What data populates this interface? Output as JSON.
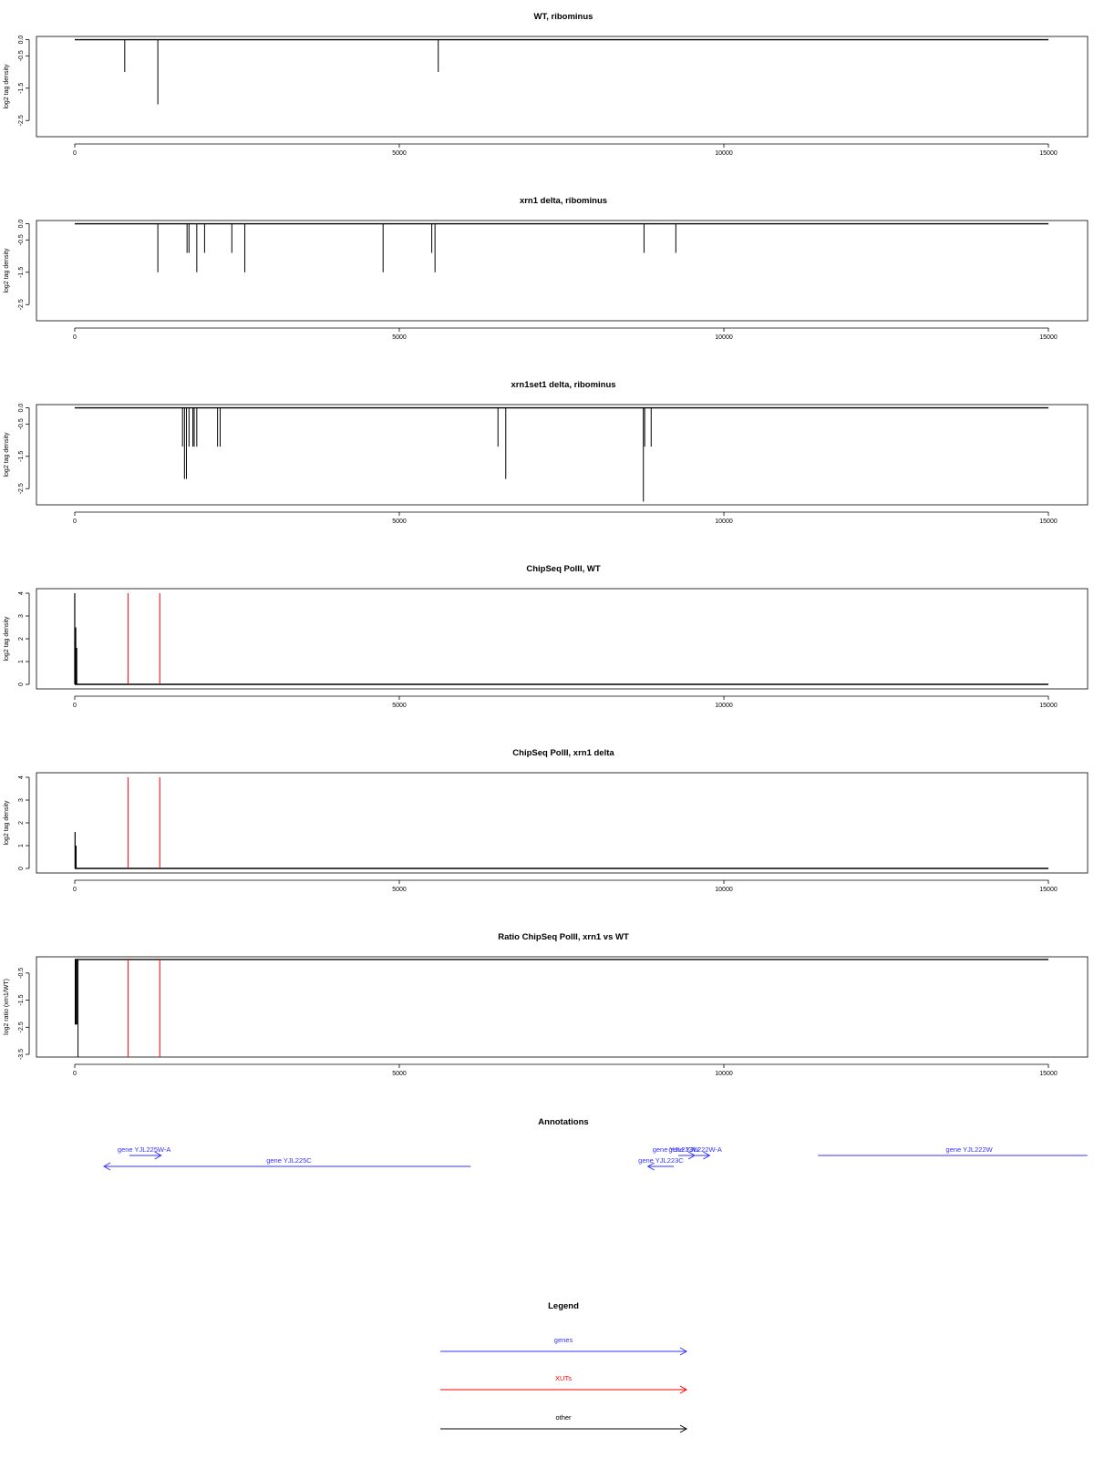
{
  "xaxis": {
    "range": [
      0,
      15000
    ],
    "ticks": [
      0,
      5000,
      10000,
      15000
    ],
    "tick_labels": [
      "0",
      "5000",
      "10000",
      "15000"
    ]
  },
  "chart_data": [
    {
      "type": "line",
      "title": "WT, ribominus",
      "ylabel": "log2 tag density",
      "ylim": [
        -3.0,
        0.1
      ],
      "yticks": [
        0.0,
        -0.5,
        -1.5,
        -2.5
      ],
      "ytick_labels": [
        "0.0",
        "-0.5",
        "-1.5",
        "-2.5"
      ],
      "baseline": 0,
      "dips": [
        {
          "x": 770,
          "y": -1.0
        },
        {
          "x": 1280,
          "y": -2.0
        },
        {
          "x": 5600,
          "y": -1.0
        }
      ],
      "markers": []
    },
    {
      "type": "line",
      "title": "xrn1 delta, ribominus",
      "ylabel": "log2 tag density",
      "ylim": [
        -3.0,
        0.1
      ],
      "yticks": [
        0.0,
        -0.5,
        -1.5,
        -2.5
      ],
      "ytick_labels": [
        "0.0",
        "-0.5",
        "-1.5",
        "-2.5"
      ],
      "baseline": 0,
      "dips": [
        {
          "x": 1280,
          "y": -1.5
        },
        {
          "x": 1730,
          "y": -0.9
        },
        {
          "x": 1760,
          "y": -0.9
        },
        {
          "x": 1880,
          "y": -1.5
        },
        {
          "x": 2000,
          "y": -0.9
        },
        {
          "x": 2420,
          "y": -0.9
        },
        {
          "x": 2620,
          "y": -1.5
        },
        {
          "x": 4750,
          "y": -1.5
        },
        {
          "x": 5500,
          "y": -0.9
        },
        {
          "x": 5550,
          "y": -1.5
        },
        {
          "x": 8770,
          "y": -0.9
        },
        {
          "x": 9260,
          "y": -0.9
        }
      ],
      "markers": []
    },
    {
      "type": "line",
      "title": "xrn1set1 delta, ribominus",
      "ylabel": "log2 tag density",
      "ylim": [
        -3.0,
        0.1
      ],
      "yticks": [
        0.0,
        -0.5,
        -1.5,
        -2.5
      ],
      "ytick_labels": [
        "0.0",
        "-0.5",
        "-1.5",
        "-2.5"
      ],
      "baseline": 0,
      "dips": [
        {
          "x": 1660,
          "y": -1.2
        },
        {
          "x": 1690,
          "y": -2.2
        },
        {
          "x": 1720,
          "y": -2.2
        },
        {
          "x": 1760,
          "y": -1.2
        },
        {
          "x": 1820,
          "y": -1.2
        },
        {
          "x": 1840,
          "y": -1.2
        },
        {
          "x": 1880,
          "y": -1.2
        },
        {
          "x": 2200,
          "y": -1.2
        },
        {
          "x": 2240,
          "y": -1.2
        },
        {
          "x": 6520,
          "y": -1.2
        },
        {
          "x": 6640,
          "y": -2.2
        },
        {
          "x": 8760,
          "y": -2.9
        },
        {
          "x": 8780,
          "y": -1.2
        },
        {
          "x": 8880,
          "y": -1.2
        }
      ],
      "markers": []
    },
    {
      "type": "line",
      "title": "ChipSeq PolII, WT",
      "ylabel": "log2 tag density",
      "ylim": [
        -0.2,
        4.2
      ],
      "yticks": [
        0,
        1,
        2,
        3,
        4
      ],
      "ytick_labels": [
        "0",
        "1",
        "2",
        "3",
        "4"
      ],
      "baseline": 0,
      "spikes": [
        {
          "x": 0,
          "y": 4.0
        },
        {
          "x": 15,
          "y": 2.5
        },
        {
          "x": 30,
          "y": 1.6
        }
      ],
      "markers": [
        {
          "x": 820,
          "y0": 0,
          "y1": 4.0
        },
        {
          "x": 1310,
          "y0": 0,
          "y1": 4.0
        }
      ]
    },
    {
      "type": "line",
      "title": "ChipSeq PolII, xrn1 delta",
      "ylabel": "log2 tag density",
      "ylim": [
        -0.2,
        4.2
      ],
      "yticks": [
        0,
        1,
        2,
        3,
        4
      ],
      "ytick_labels": [
        "0",
        "1",
        "2",
        "3",
        "4"
      ],
      "baseline": 0,
      "spikes": [
        {
          "x": 5,
          "y": 1.6
        },
        {
          "x": 20,
          "y": 1.0
        }
      ],
      "markers": [
        {
          "x": 820,
          "y0": 0,
          "y1": 4.0
        },
        {
          "x": 1310,
          "y0": 0,
          "y1": 4.0
        }
      ]
    },
    {
      "type": "line",
      "title": "Ratio ChipSeq PolII, xrn1 vs WT",
      "ylabel": "log2 ratio (xrn1/WT)",
      "ylim": [
        -3.6,
        0.1
      ],
      "yticks": [
        -0.5,
        -1.5,
        -2.5,
        -3.5
      ],
      "ytick_labels": [
        "-0.5",
        "-1.5",
        "-2.5",
        "-3.5"
      ],
      "baseline": 0,
      "block": {
        "x0": 0,
        "x1": 40,
        "y": -2.4
      },
      "dips": [
        {
          "x": 50,
          "y": -3.6
        }
      ],
      "markers": [
        {
          "x": 820,
          "y0": 0,
          "y1": -3.6
        },
        {
          "x": 1310,
          "y0": 0,
          "y1": -3.6
        }
      ]
    }
  ],
  "annotations": {
    "title": "Annotations",
    "genes": [
      {
        "label": "gene YJL225W-A",
        "x0": 840,
        "x1": 1330,
        "strand": "+",
        "row": 0,
        "label_x": 1070
      },
      {
        "label": "gene YJL225C",
        "x0": 450,
        "x1": 6100,
        "strand": "-",
        "row": 1,
        "label_x": 3300
      },
      {
        "label": "gene YJL223C",
        "x0": 8830,
        "x1": 9230,
        "strand": "-",
        "row": 1,
        "label_x": 9030
      },
      {
        "label": "gene YJL223W",
        "x0": 9300,
        "x1": 9550,
        "strand": "+",
        "row": 0,
        "label_x": 9260
      },
      {
        "label": "gene YJL222W-A",
        "x0": 9560,
        "x1": 9780,
        "strand": "+",
        "row": 0,
        "label_x": 9560
      },
      {
        "label": "gene YJL222W",
        "x0": 11450,
        "x1": 15600,
        "strand": "+",
        "row": 0,
        "label_x": 13780
      }
    ]
  },
  "legend": {
    "title": "Legend",
    "items": [
      {
        "label": "genes",
        "color": "#3333ff"
      },
      {
        "label": "XUTs",
        "color": "#ff0000"
      },
      {
        "label": "other",
        "color": "#000000"
      }
    ]
  },
  "colors": {
    "gene": "#3333ff",
    "xut": "#ff0000",
    "other": "#000000",
    "axis": "#000000"
  }
}
